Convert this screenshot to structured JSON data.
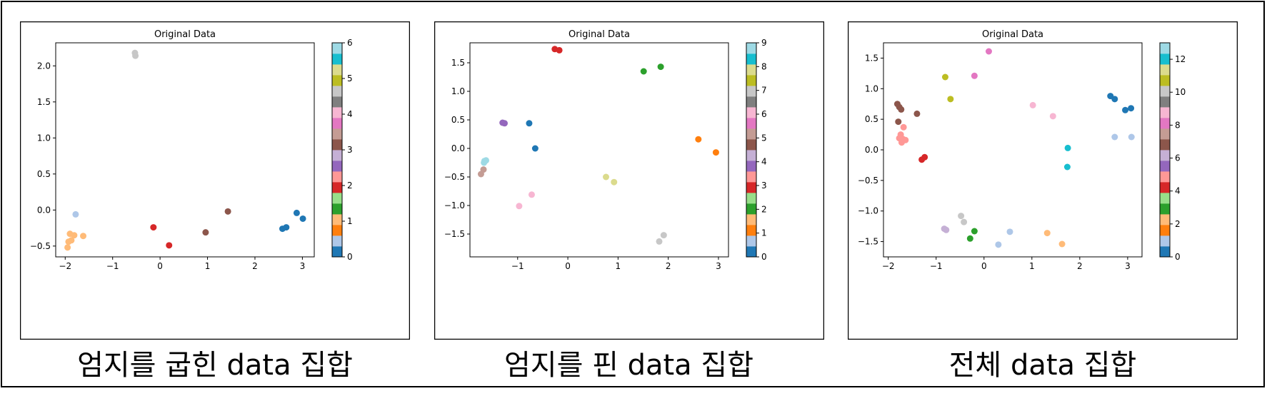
{
  "chart_data": [
    {
      "type": "scatter",
      "title": "Original Data",
      "caption": "엄지를 굽힌 data 집합",
      "xlim": [
        -2.2,
        3.25
      ],
      "ylim": [
        -0.65,
        2.32
      ],
      "xticks": [
        -2,
        -1,
        0,
        1,
        2,
        3
      ],
      "yticks": [
        -0.5,
        0.0,
        0.5,
        1.0,
        1.5,
        2.0
      ],
      "yticklabels": [
        "−0.5",
        "0.0",
        "0.5",
        "1.0",
        "1.5",
        "2.0"
      ],
      "xticklabels": [
        "−2",
        "−1",
        "0",
        "1",
        "2",
        "3"
      ],
      "colorbar": {
        "min": 0,
        "max": 6,
        "ticks": [
          0,
          1,
          2,
          3,
          4,
          5,
          6
        ],
        "colormap": "tab20"
      },
      "grid": false,
      "points": [
        {
          "x": 2.58,
          "y": -0.26,
          "label": 0
        },
        {
          "x": 2.66,
          "y": -0.24,
          "label": 0
        },
        {
          "x": 2.88,
          "y": -0.04,
          "label": 0
        },
        {
          "x": 3.01,
          "y": -0.12,
          "label": 0
        },
        {
          "x": -1.78,
          "y": -0.06,
          "label": 0.5
        },
        {
          "x": -1.9,
          "y": -0.33,
          "label": 1
        },
        {
          "x": -1.81,
          "y": -0.35,
          "label": 1
        },
        {
          "x": -1.62,
          "y": -0.36,
          "label": 1
        },
        {
          "x": -1.87,
          "y": -0.42,
          "label": 1
        },
        {
          "x": -1.93,
          "y": -0.44,
          "label": 1
        },
        {
          "x": -1.95,
          "y": -0.52,
          "label": 1
        },
        {
          "x": -0.14,
          "y": -0.24,
          "label": 2
        },
        {
          "x": 0.19,
          "y": -0.49,
          "label": 2
        },
        {
          "x": 0.96,
          "y": -0.31,
          "label": 3
        },
        {
          "x": 1.43,
          "y": -0.02,
          "label": 3
        },
        {
          "x": -0.53,
          "y": 2.18,
          "label": 4.5
        },
        {
          "x": -0.52,
          "y": 2.14,
          "label": 4.5
        }
      ]
    },
    {
      "type": "scatter",
      "title": "Original Data",
      "caption": "엄지를 핀 data 집합",
      "xlim": [
        -1.95,
        3.2
      ],
      "ylim": [
        -1.9,
        1.85
      ],
      "xticks": [
        -1,
        0,
        1,
        2,
        3
      ],
      "xticklabels": [
        "−1",
        "0",
        "1",
        "2",
        "3"
      ],
      "yticks": [
        -1.5,
        -1.0,
        -0.5,
        0.0,
        0.5,
        1.0,
        1.5
      ],
      "yticklabels": [
        "−1.5",
        "−1.0",
        "−0.5",
        "0.0",
        "0.5",
        "1.0",
        "1.5"
      ],
      "colorbar": {
        "min": 0,
        "max": 9,
        "ticks": [
          0,
          1,
          2,
          3,
          4,
          5,
          6,
          7,
          8,
          9
        ],
        "colormap": "tab20"
      },
      "grid": false,
      "points": [
        {
          "x": -0.77,
          "y": 0.44,
          "label": 0
        },
        {
          "x": -0.65,
          "y": 0.0,
          "label": 0
        },
        {
          "x": 2.6,
          "y": 0.16,
          "label": 1
        },
        {
          "x": 2.95,
          "y": -0.07,
          "label": 1
        },
        {
          "x": 1.51,
          "y": 1.35,
          "label": 2
        },
        {
          "x": 1.85,
          "y": 1.43,
          "label": 2
        },
        {
          "x": -0.26,
          "y": 1.74,
          "label": 3
        },
        {
          "x": -0.17,
          "y": 1.72,
          "label": 3
        },
        {
          "x": -1.3,
          "y": 0.45,
          "label": 4
        },
        {
          "x": -1.26,
          "y": 0.44,
          "label": 4
        },
        {
          "x": -1.73,
          "y": -0.45,
          "label": 5
        },
        {
          "x": -1.68,
          "y": -0.37,
          "label": 5
        },
        {
          "x": -0.97,
          "y": -1.01,
          "label": 6
        },
        {
          "x": -0.72,
          "y": -0.81,
          "label": 6
        },
        {
          "x": 1.82,
          "y": -1.63,
          "label": 7
        },
        {
          "x": 1.91,
          "y": -1.52,
          "label": 7
        },
        {
          "x": 0.76,
          "y": -0.5,
          "label": 8
        },
        {
          "x": 0.92,
          "y": -0.59,
          "label": 8
        },
        {
          "x": -1.66,
          "y": -0.22,
          "label": 9
        },
        {
          "x": -1.63,
          "y": -0.21,
          "label": 9
        },
        {
          "x": -1.67,
          "y": -0.25,
          "label": 9
        }
      ]
    },
    {
      "type": "scatter",
      "title": "Original Data",
      "caption": "전체 data 집합",
      "xlim": [
        -2.1,
        3.3
      ],
      "ylim": [
        -1.75,
        1.75
      ],
      "xticks": [
        -2,
        -1,
        0,
        1,
        2,
        3
      ],
      "xticklabels": [
        "−2",
        "−1",
        "0",
        "1",
        "2",
        "3"
      ],
      "yticks": [
        -1.5,
        -1.0,
        -0.5,
        0.0,
        0.5,
        1.0,
        1.5
      ],
      "yticklabels": [
        "−1.5",
        "−1.0",
        "−0.5",
        "0.0",
        "0.5",
        "1.0",
        "1.5"
      ],
      "colorbar": {
        "min": 0,
        "max": 13,
        "ticks": [
          0,
          2,
          4,
          6,
          8,
          10,
          12
        ],
        "colormap": "tab20"
      },
      "grid": false,
      "points": [
        {
          "x": 2.64,
          "y": 0.88,
          "label": 0
        },
        {
          "x": 2.73,
          "y": 0.83,
          "label": 0
        },
        {
          "x": 2.95,
          "y": 0.65,
          "label": 0
        },
        {
          "x": 3.07,
          "y": 0.68,
          "label": 0
        },
        {
          "x": 2.73,
          "y": 0.21,
          "label": 1
        },
        {
          "x": 3.08,
          "y": 0.21,
          "label": 1
        },
        {
          "x": 0.3,
          "y": -1.55,
          "label": 1
        },
        {
          "x": 0.54,
          "y": -1.34,
          "label": 1
        },
        {
          "x": 1.32,
          "y": -1.36,
          "label": 2
        },
        {
          "x": 1.63,
          "y": -1.54,
          "label": 2
        },
        {
          "x": -0.29,
          "y": -1.45,
          "label": 3
        },
        {
          "x": -0.2,
          "y": -1.33,
          "label": 3
        },
        {
          "x": -1.3,
          "y": -0.16,
          "label": 4
        },
        {
          "x": -1.24,
          "y": -0.12,
          "label": 4
        },
        {
          "x": -1.74,
          "y": 0.25,
          "label": 5
        },
        {
          "x": -1.68,
          "y": 0.37,
          "label": 5
        },
        {
          "x": -1.77,
          "y": 0.19,
          "label": 5
        },
        {
          "x": -1.7,
          "y": 0.18,
          "label": 5
        },
        {
          "x": -1.64,
          "y": 0.16,
          "label": 5
        },
        {
          "x": -1.72,
          "y": 0.12,
          "label": 5
        },
        {
          "x": -0.83,
          "y": -1.29,
          "label": 6
        },
        {
          "x": -0.79,
          "y": -1.31,
          "label": 6
        },
        {
          "x": -1.81,
          "y": 0.75,
          "label": 7
        },
        {
          "x": -1.77,
          "y": 0.7,
          "label": 7
        },
        {
          "x": -1.73,
          "y": 0.66,
          "label": 7
        },
        {
          "x": -1.4,
          "y": 0.59,
          "label": 7
        },
        {
          "x": -1.79,
          "y": 0.46,
          "label": 7
        },
        {
          "x": -0.2,
          "y": 1.21,
          "label": 8
        },
        {
          "x": 0.1,
          "y": 1.61,
          "label": 8
        },
        {
          "x": 1.02,
          "y": 0.73,
          "label": 9
        },
        {
          "x": 1.44,
          "y": 0.55,
          "label": 9
        },
        {
          "x": -0.48,
          "y": -1.08,
          "label": 10
        },
        {
          "x": -0.42,
          "y": -1.18,
          "label": 10
        },
        {
          "x": -0.81,
          "y": 1.19,
          "label": 11
        },
        {
          "x": -0.7,
          "y": 0.83,
          "label": 11
        },
        {
          "x": 1.75,
          "y": 0.03,
          "label": 12
        },
        {
          "x": 1.74,
          "y": -0.28,
          "label": 12
        }
      ]
    }
  ]
}
